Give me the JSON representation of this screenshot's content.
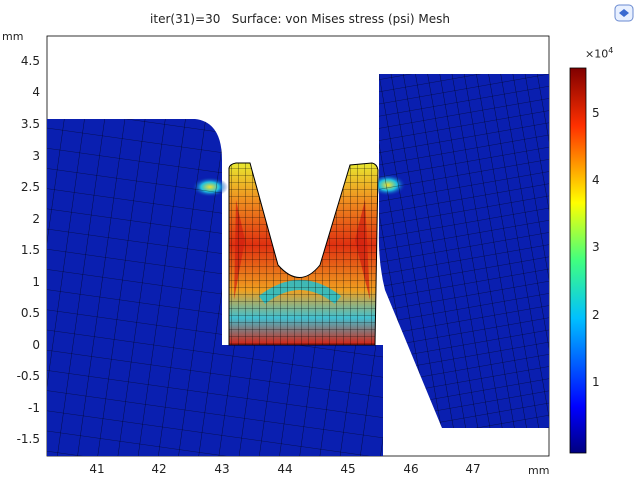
{
  "plot": {
    "title": "iter(31)=30   Surface: von Mises stress (psi) Mesh",
    "x_unit": "mm",
    "y_unit": "mm",
    "x_ticks": [
      "41",
      "42",
      "43",
      "44",
      "45",
      "46",
      "47"
    ],
    "y_ticks": [
      "4.5",
      "4",
      "3.5",
      "3",
      "2.5",
      "2",
      "1.5",
      "1",
      "0.5",
      "0",
      "-0.5",
      "-1",
      "-1.5"
    ]
  },
  "colorbar": {
    "exponent_label": "×10",
    "exponent_power": "4",
    "ticks": [
      "5",
      "4",
      "3",
      "2",
      "1"
    ]
  },
  "colors": {
    "background_field": "#0a1fb0",
    "hot": "#d81a10",
    "mid": "#f0e030",
    "cool": "#20b0e0"
  }
}
